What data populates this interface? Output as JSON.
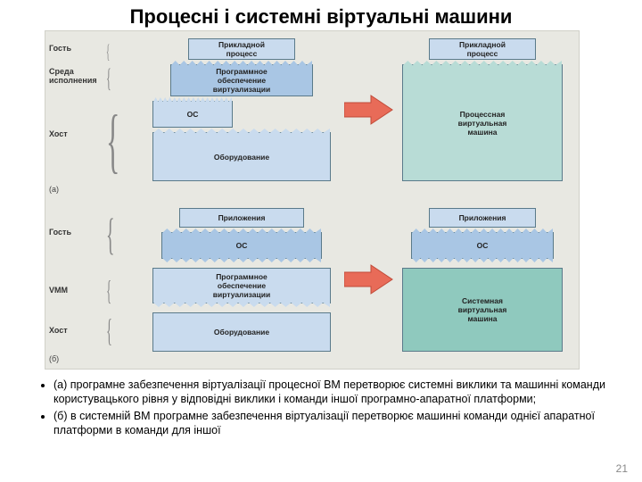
{
  "title": "Процесні і системні віртуальні машини",
  "page_number": "21",
  "colors": {
    "bg": "#e8e8e2",
    "light_blue": "#c9dbee",
    "mid_blue": "#a9c6e4",
    "teal": "#b8dcd6",
    "teal_dark": "#8fc9be",
    "arrow_fill": "#e86b58",
    "arrow_stroke": "#c04a38",
    "border": "#5a7a8a"
  },
  "subfig_a": {
    "tag": "(a)",
    "row_labels": {
      "guest": "Гость",
      "runtime": "Среда\nисполнения",
      "host": "Хост"
    },
    "left": {
      "app": "Прикладной\nпроцесс",
      "virt": "Программное\nобеспечение\nвиртуализации",
      "os": "ОС",
      "hw": "Оборудование"
    },
    "right": {
      "app": "Прикладной\nпроцесс",
      "vm": "Процессная\nвиртуальная\nмашина"
    }
  },
  "subfig_b": {
    "tag": "(б)",
    "row_labels": {
      "guest": "Гость",
      "vmm": "VMM",
      "host": "Хост"
    },
    "left": {
      "apps": "Приложения",
      "os": "ОС",
      "virt": "Программное\nобеспечение\nвиртуализации",
      "hw": "Оборудование"
    },
    "right": {
      "apps": "Приложения",
      "os": "ОС",
      "vm": "Системная\nвиртуальная\nмашина"
    }
  },
  "bullets": [
    "(а) програмне забезпечення віртуалізації процесної ВМ перетворює системні виклики та машинні команди користувацького рівня у відповідні виклики і команди іншої програмно-апаратної платформи;",
    "(б) в системній ВМ програмне забезпечення віртуалізації перетворює машинні команди однієї апаратної платформи в команди для іншої"
  ]
}
